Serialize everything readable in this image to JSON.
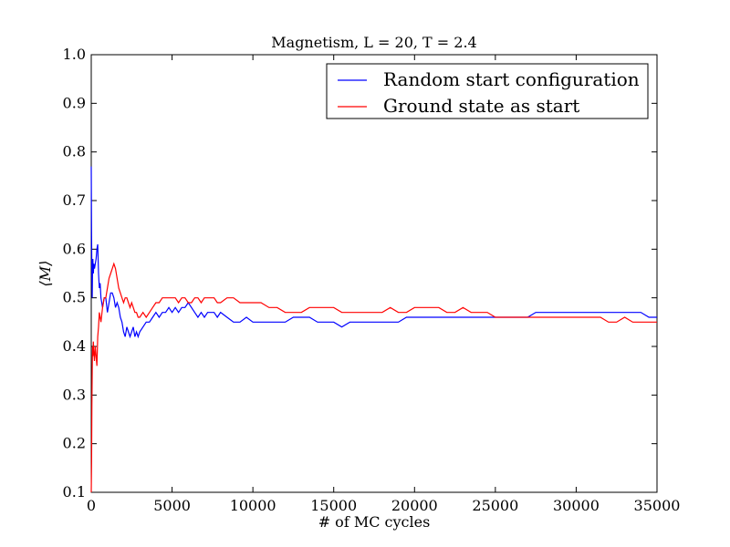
{
  "chart_data": {
    "type": "line",
    "title": "Magnetism, L = 20, T = 2.4",
    "xlabel": "# of MC cycles",
    "ylabel": "⟨M⟩",
    "xlim": [
      0,
      35000
    ],
    "ylim": [
      0.1,
      1.0
    ],
    "xticks": [
      0,
      5000,
      10000,
      15000,
      20000,
      25000,
      30000,
      35000
    ],
    "yticks": [
      0.1,
      0.2,
      0.3,
      0.4,
      0.5,
      0.6,
      0.7,
      0.8,
      0.9,
      1.0
    ],
    "grid": false,
    "legend_position": "top-right",
    "series": [
      {
        "name": "Random start configuration",
        "color": "#0000ff",
        "x": [
          0,
          20,
          40,
          60,
          80,
          100,
          130,
          160,
          200,
          250,
          300,
          350,
          400,
          450,
          500,
          550,
          600,
          700,
          800,
          900,
          1000,
          1100,
          1200,
          1300,
          1400,
          1500,
          1600,
          1700,
          1800,
          1900,
          2000,
          2100,
          2200,
          2300,
          2400,
          2500,
          2600,
          2700,
          2800,
          2900,
          3000,
          3200,
          3400,
          3600,
          3800,
          4000,
          4200,
          4400,
          4600,
          4800,
          5000,
          5200,
          5400,
          5600,
          5800,
          6000,
          6200,
          6400,
          6600,
          6800,
          7000,
          7200,
          7400,
          7600,
          7800,
          8000,
          8400,
          8800,
          9200,
          9600,
          10000,
          10500,
          11000,
          11500,
          12000,
          12500,
          13000,
          13500,
          14000,
          14500,
          15000,
          15500,
          16000,
          16500,
          17000,
          17500,
          18000,
          18500,
          19000,
          19500,
          20000,
          20500,
          21000,
          21500,
          22000,
          22500,
          23000,
          23500,
          24000,
          24500,
          25000,
          25500,
          26000,
          26500,
          27000,
          27500,
          28000,
          28500,
          29000,
          29500,
          30000,
          30500,
          31000,
          31500,
          32000,
          32500,
          33000,
          33500,
          34000,
          34500,
          35000
        ],
        "values": [
          0.77,
          0.63,
          0.54,
          0.5,
          0.56,
          0.58,
          0.55,
          0.57,
          0.56,
          0.57,
          0.58,
          0.6,
          0.61,
          0.55,
          0.52,
          0.53,
          0.5,
          0.48,
          0.5,
          0.5,
          0.47,
          0.49,
          0.51,
          0.51,
          0.5,
          0.48,
          0.49,
          0.48,
          0.46,
          0.45,
          0.43,
          0.42,
          0.44,
          0.43,
          0.42,
          0.43,
          0.44,
          0.42,
          0.43,
          0.42,
          0.43,
          0.44,
          0.45,
          0.45,
          0.46,
          0.47,
          0.46,
          0.47,
          0.47,
          0.48,
          0.47,
          0.48,
          0.47,
          0.48,
          0.48,
          0.49,
          0.48,
          0.47,
          0.46,
          0.47,
          0.46,
          0.47,
          0.47,
          0.47,
          0.46,
          0.47,
          0.46,
          0.45,
          0.45,
          0.46,
          0.45,
          0.45,
          0.45,
          0.45,
          0.45,
          0.46,
          0.46,
          0.46,
          0.45,
          0.45,
          0.45,
          0.44,
          0.45,
          0.45,
          0.45,
          0.45,
          0.45,
          0.45,
          0.45,
          0.46,
          0.46,
          0.46,
          0.46,
          0.46,
          0.46,
          0.46,
          0.46,
          0.46,
          0.46,
          0.46,
          0.46,
          0.46,
          0.46,
          0.46,
          0.46,
          0.47,
          0.47,
          0.47,
          0.47,
          0.47,
          0.47,
          0.47,
          0.47,
          0.47,
          0.47,
          0.47,
          0.47,
          0.47,
          0.47,
          0.46,
          0.46
        ]
      },
      {
        "name": "Ground state as start",
        "color": "#ff0000",
        "x": [
          0,
          20,
          40,
          60,
          80,
          100,
          130,
          160,
          200,
          250,
          300,
          350,
          400,
          450,
          500,
          550,
          600,
          700,
          800,
          900,
          1000,
          1100,
          1200,
          1300,
          1400,
          1500,
          1600,
          1700,
          1800,
          1900,
          2000,
          2100,
          2200,
          2300,
          2400,
          2500,
          2600,
          2700,
          2800,
          2900,
          3000,
          3200,
          3400,
          3600,
          3800,
          4000,
          4200,
          4400,
          4600,
          4800,
          5000,
          5200,
          5400,
          5600,
          5800,
          6000,
          6200,
          6400,
          6600,
          6800,
          7000,
          7200,
          7400,
          7600,
          7800,
          8000,
          8400,
          8800,
          9200,
          9600,
          10000,
          10500,
          11000,
          11500,
          12000,
          12500,
          13000,
          13500,
          14000,
          14500,
          15000,
          15500,
          16000,
          16500,
          17000,
          17500,
          18000,
          18500,
          19000,
          19500,
          20000,
          20500,
          21000,
          21500,
          22000,
          22500,
          23000,
          23500,
          24000,
          24500,
          25000,
          25500,
          26000,
          26500,
          27000,
          27500,
          28000,
          28500,
          29000,
          29500,
          30000,
          30500,
          31000,
          31500,
          32000,
          32500,
          33000,
          33500,
          34000,
          34500,
          35000
        ],
        "values": [
          0.1,
          0.16,
          0.28,
          0.35,
          0.4,
          0.38,
          0.41,
          0.39,
          0.37,
          0.4,
          0.38,
          0.36,
          0.42,
          0.44,
          0.47,
          0.46,
          0.45,
          0.48,
          0.5,
          0.5,
          0.52,
          0.54,
          0.55,
          0.56,
          0.57,
          0.56,
          0.54,
          0.52,
          0.51,
          0.5,
          0.49,
          0.5,
          0.5,
          0.49,
          0.48,
          0.49,
          0.48,
          0.47,
          0.47,
          0.46,
          0.46,
          0.47,
          0.46,
          0.47,
          0.48,
          0.49,
          0.49,
          0.5,
          0.5,
          0.5,
          0.5,
          0.5,
          0.49,
          0.5,
          0.5,
          0.49,
          0.49,
          0.5,
          0.5,
          0.49,
          0.5,
          0.5,
          0.5,
          0.5,
          0.49,
          0.49,
          0.5,
          0.5,
          0.49,
          0.49,
          0.49,
          0.49,
          0.48,
          0.48,
          0.47,
          0.47,
          0.47,
          0.48,
          0.48,
          0.48,
          0.48,
          0.47,
          0.47,
          0.47,
          0.47,
          0.47,
          0.47,
          0.48,
          0.47,
          0.47,
          0.48,
          0.48,
          0.48,
          0.48,
          0.47,
          0.47,
          0.48,
          0.47,
          0.47,
          0.47,
          0.46,
          0.46,
          0.46,
          0.46,
          0.46,
          0.46,
          0.46,
          0.46,
          0.46,
          0.46,
          0.46,
          0.46,
          0.46,
          0.46,
          0.45,
          0.45,
          0.46,
          0.45,
          0.45,
          0.45,
          0.45
        ]
      }
    ]
  }
}
